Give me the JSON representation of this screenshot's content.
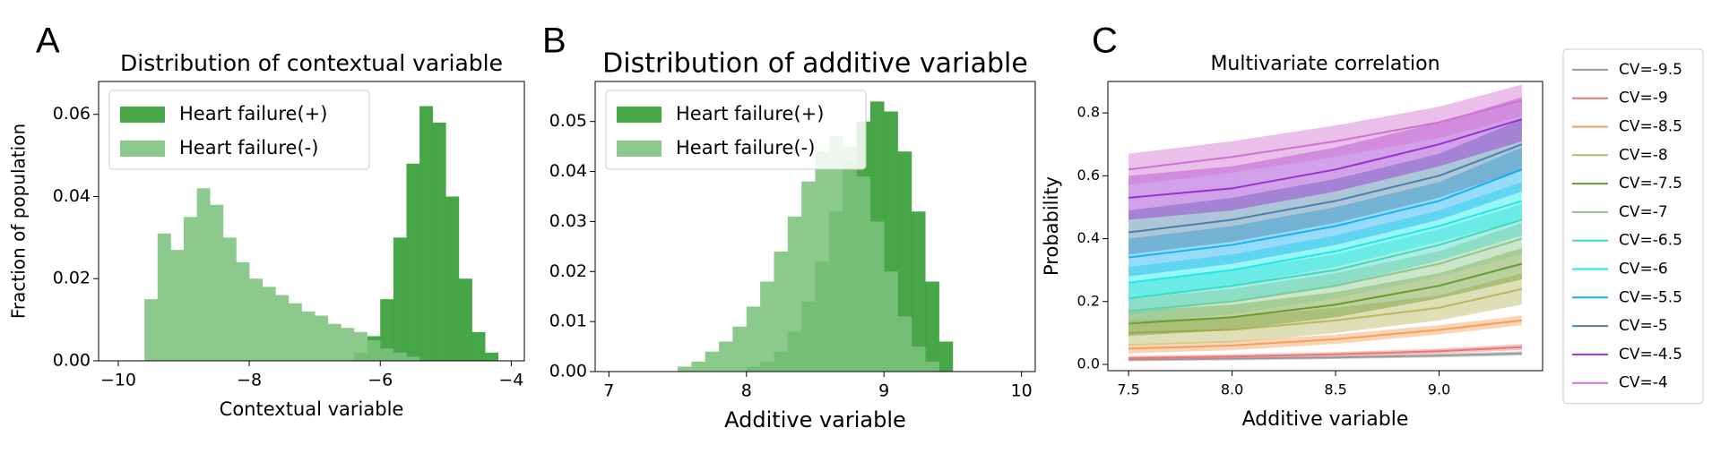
{
  "chart_data": [
    {
      "type": "histogram",
      "panel_label": "A",
      "title": "Distribution of contextual variable",
      "xlabel": "Contextual variable",
      "ylabel": "Fraction of population",
      "xlim": [
        -10.3,
        -3.8
      ],
      "ylim": [
        0,
        0.068
      ],
      "xticks": [
        {
          "value": -10,
          "label": "−10"
        },
        {
          "value": -8,
          "label": "−8"
        },
        {
          "value": -6,
          "label": "−6"
        },
        {
          "value": -4,
          "label": "−4"
        }
      ],
      "yticks": [
        {
          "value": 0,
          "label": "0.00"
        },
        {
          "value": 0.02,
          "label": "0.02"
        },
        {
          "value": 0.04,
          "label": "0.04"
        },
        {
          "value": 0.06,
          "label": "0.06"
        }
      ],
      "legend": "upper left",
      "series": [
        {
          "name": "Heart failure(+)",
          "color": "#2e9a2e",
          "bins": [
            -6.4,
            -6.2,
            -6.0,
            -5.8,
            -5.6,
            -5.4,
            -5.2,
            -5.0,
            -4.8,
            -4.6,
            -4.4,
            -4.2
          ],
          "values": [
            0.002,
            0.006,
            0.015,
            0.03,
            0.048,
            0.062,
            0.058,
            0.04,
            0.02,
            0.007,
            0.002
          ]
        },
        {
          "name": "Heart failure(-)",
          "color": "#7cc27c",
          "bins": [
            -9.6,
            -9.4,
            -9.2,
            -9.0,
            -8.8,
            -8.6,
            -8.4,
            -8.2,
            -8.0,
            -7.8,
            -7.6,
            -7.4,
            -7.2,
            -7.0,
            -6.8,
            -6.6,
            -6.4,
            -6.2,
            -6.0,
            -5.8,
            -5.6,
            -5.4
          ],
          "values": [
            0.015,
            0.031,
            0.027,
            0.035,
            0.042,
            0.038,
            0.03,
            0.024,
            0.02,
            0.018,
            0.016,
            0.014,
            0.012,
            0.011,
            0.009,
            0.008,
            0.007,
            0.005,
            0.003,
            0.002,
            0.001
          ]
        }
      ]
    },
    {
      "type": "histogram",
      "panel_label": "B",
      "title": "Distribution of additive variable",
      "xlabel": "Additive variable",
      "xlim": [
        6.9,
        10.1
      ],
      "ylim": [
        0,
        0.058
      ],
      "xticks": [
        7,
        8,
        9,
        10
      ],
      "yticks": [
        {
          "value": 0,
          "label": "0.00"
        },
        {
          "value": 0.01,
          "label": "0.01"
        },
        {
          "value": 0.02,
          "label": "0.02"
        },
        {
          "value": 0.03,
          "label": "0.03"
        },
        {
          "value": 0.04,
          "label": "0.04"
        },
        {
          "value": 0.05,
          "label": "0.05"
        }
      ],
      "legend": "upper left",
      "series": [
        {
          "name": "Heart failure(+)",
          "color": "#2e9a2e",
          "bins": [
            8.0,
            8.1,
            8.2,
            8.3,
            8.4,
            8.5,
            8.6,
            8.7,
            8.8,
            8.9,
            9.0,
            9.1,
            9.2,
            9.3,
            9.4,
            9.5
          ],
          "values": [
            0.001,
            0.002,
            0.004,
            0.008,
            0.014,
            0.022,
            0.032,
            0.042,
            0.05,
            0.054,
            0.052,
            0.044,
            0.032,
            0.018,
            0.006
          ]
        },
        {
          "name": "Heart failure(-)",
          "color": "#7cc27c",
          "bins": [
            7.5,
            7.6,
            7.7,
            7.8,
            7.9,
            8.0,
            8.1,
            8.2,
            8.3,
            8.4,
            8.5,
            8.6,
            8.7,
            8.8,
            8.9,
            9.0,
            9.1,
            9.2,
            9.3,
            9.4
          ],
          "values": [
            0.001,
            0.002,
            0.004,
            0.006,
            0.009,
            0.013,
            0.018,
            0.024,
            0.031,
            0.038,
            0.044,
            0.047,
            0.045,
            0.039,
            0.03,
            0.02,
            0.011,
            0.005,
            0.002
          ]
        }
      ]
    },
    {
      "type": "line",
      "panel_label": "C",
      "title": "Multivariate correlation",
      "xlabel": "Additive variable",
      "ylabel": "Probability",
      "xlim": [
        7.4,
        9.5
      ],
      "ylim": [
        -0.02,
        0.9
      ],
      "xticks": [
        7.5,
        {
          "value": 8.0,
          "label": "8.0"
        },
        8.5,
        {
          "value": 9.0,
          "label": "9.0"
        }
      ],
      "yticks": [
        {
          "value": 0,
          "label": "0.0"
        },
        0.2,
        0.4,
        0.6,
        0.8
      ],
      "legend": "outside right",
      "x": [
        7.5,
        8.0,
        8.5,
        9.0,
        9.4
      ],
      "series": [
        {
          "name": "CV=-9.5",
          "color": "#9a9a9a",
          "values": [
            0.015,
            0.018,
            0.022,
            0.028,
            0.035
          ],
          "lower": [
            0.01,
            0.013,
            0.017,
            0.022,
            0.028
          ],
          "upper": [
            0.02,
            0.023,
            0.027,
            0.034,
            0.042
          ]
        },
        {
          "name": "CV=-9",
          "color": "#e87878",
          "values": [
            0.02,
            0.025,
            0.032,
            0.042,
            0.055
          ],
          "lower": [
            0.013,
            0.018,
            0.025,
            0.034,
            0.046
          ],
          "upper": [
            0.027,
            0.032,
            0.039,
            0.05,
            0.064
          ]
        },
        {
          "name": "CV=-8.5",
          "color": "#f5a05a",
          "values": [
            0.05,
            0.06,
            0.08,
            0.11,
            0.14
          ],
          "lower": [
            0.035,
            0.045,
            0.065,
            0.095,
            0.125
          ],
          "upper": [
            0.065,
            0.075,
            0.095,
            0.125,
            0.155
          ]
        },
        {
          "name": "CV=-8",
          "color": "#b8b860",
          "values": [
            0.1,
            0.11,
            0.14,
            0.18,
            0.24
          ],
          "lower": [
            0.06,
            0.07,
            0.1,
            0.14,
            0.19
          ],
          "upper": [
            0.14,
            0.15,
            0.18,
            0.22,
            0.29
          ]
        },
        {
          "name": "CV=-7.5",
          "color": "#6a9a2a",
          "values": [
            0.13,
            0.15,
            0.19,
            0.25,
            0.32
          ],
          "lower": [
            0.09,
            0.11,
            0.15,
            0.21,
            0.27
          ],
          "upper": [
            0.17,
            0.19,
            0.23,
            0.29,
            0.37
          ]
        },
        {
          "name": "CV=-7",
          "color": "#8cc88c",
          "values": [
            0.17,
            0.2,
            0.25,
            0.32,
            0.4
          ],
          "lower": [
            0.13,
            0.16,
            0.21,
            0.28,
            0.35
          ],
          "upper": [
            0.21,
            0.24,
            0.29,
            0.36,
            0.45
          ]
        },
        {
          "name": "CV=-6.5",
          "color": "#40d8c0",
          "values": [
            0.21,
            0.25,
            0.3,
            0.38,
            0.46
          ],
          "lower": [
            0.16,
            0.2,
            0.25,
            0.33,
            0.41
          ],
          "upper": [
            0.26,
            0.3,
            0.35,
            0.43,
            0.51
          ]
        },
        {
          "name": "CV=-6",
          "color": "#20e8e8",
          "values": [
            0.26,
            0.3,
            0.36,
            0.44,
            0.52
          ],
          "lower": [
            0.21,
            0.25,
            0.31,
            0.39,
            0.46
          ],
          "upper": [
            0.31,
            0.35,
            0.41,
            0.49,
            0.58
          ]
        },
        {
          "name": "CV=-5.5",
          "color": "#18b0f0",
          "values": [
            0.34,
            0.38,
            0.44,
            0.52,
            0.62
          ],
          "lower": [
            0.28,
            0.32,
            0.38,
            0.46,
            0.55
          ],
          "upper": [
            0.4,
            0.44,
            0.5,
            0.58,
            0.69
          ]
        },
        {
          "name": "CV=-5",
          "color": "#4a80a8",
          "values": [
            0.42,
            0.46,
            0.52,
            0.6,
            0.7
          ],
          "lower": [
            0.35,
            0.39,
            0.45,
            0.53,
            0.62
          ],
          "upper": [
            0.49,
            0.53,
            0.59,
            0.67,
            0.78
          ]
        },
        {
          "name": "CV=-4.5",
          "color": "#9a30d0",
          "values": [
            0.53,
            0.56,
            0.62,
            0.7,
            0.78
          ],
          "lower": [
            0.46,
            0.49,
            0.55,
            0.63,
            0.71
          ],
          "upper": [
            0.6,
            0.63,
            0.69,
            0.77,
            0.85
          ]
        },
        {
          "name": "CV=-4",
          "color": "#d070d0",
          "values": [
            0.62,
            0.66,
            0.71,
            0.77,
            0.84
          ],
          "lower": [
            0.57,
            0.61,
            0.66,
            0.72,
            0.79
          ],
          "upper": [
            0.67,
            0.71,
            0.76,
            0.82,
            0.89
          ]
        }
      ]
    }
  ]
}
